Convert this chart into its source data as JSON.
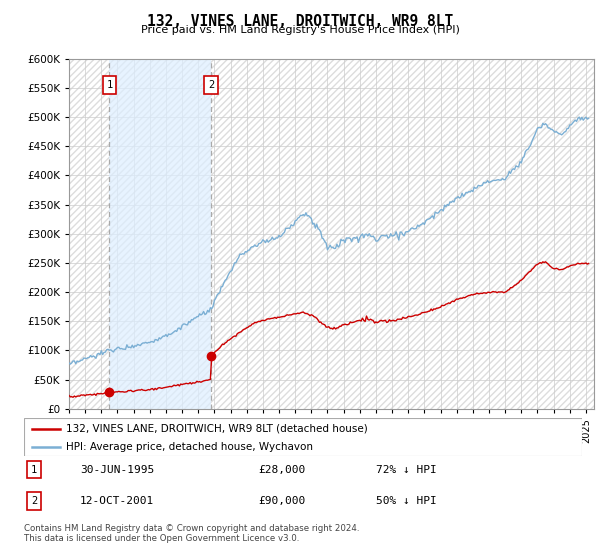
{
  "title": "132, VINES LANE, DROITWICH, WR9 8LT",
  "subtitle": "Price paid vs. HM Land Registry's House Price Index (HPI)",
  "legend_line1": "132, VINES LANE, DROITWICH, WR9 8LT (detached house)",
  "legend_line2": "HPI: Average price, detached house, Wychavon",
  "sale1_label": "1",
  "sale1_date": "30-JUN-1995",
  "sale1_price": "£28,000",
  "sale1_hpi": "72% ↓ HPI",
  "sale2_label": "2",
  "sale2_date": "12-OCT-2001",
  "sale2_price": "£90,000",
  "sale2_hpi": "50% ↓ HPI",
  "footer": "Contains HM Land Registry data © Crown copyright and database right 2024.\nThis data is licensed under the Open Government Licence v3.0.",
  "ylim": [
    0,
    600000
  ],
  "yticks": [
    0,
    50000,
    100000,
    150000,
    200000,
    250000,
    300000,
    350000,
    400000,
    450000,
    500000,
    550000,
    600000
  ],
  "sale_color": "#cc0000",
  "hpi_color": "#7bafd4",
  "grid_color": "#cccccc",
  "sale1_x": 1995.5,
  "sale1_y": 28000,
  "sale2_x": 2001.79,
  "sale2_y": 90000,
  "xlim": [
    1993,
    2025.5
  ],
  "xtick_start": 1993,
  "xtick_end": 2025
}
